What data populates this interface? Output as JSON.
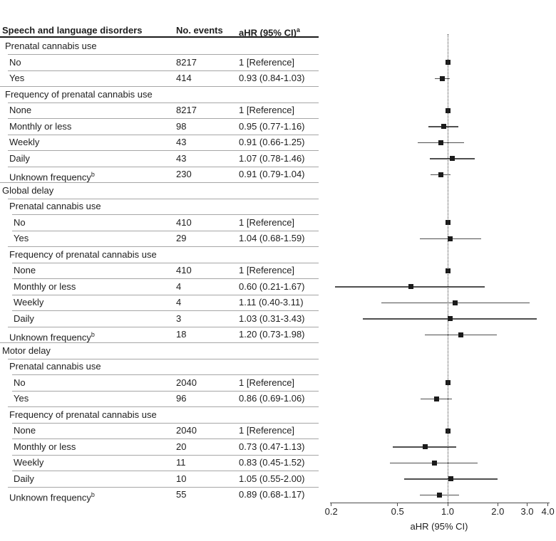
{
  "chart_data": {
    "type": "forest",
    "columns": {
      "outcome": "Speech and language disorders",
      "events": "No. events",
      "ahr": "aHR (95% CI)",
      "ahr_sup": "a"
    },
    "xlabel": "aHR (95% CI)",
    "x_scale": "log",
    "x_range": [
      0.2,
      4.0
    ],
    "x_ticks": [
      0.2,
      0.5,
      1.0,
      2.0,
      3.0,
      4.0
    ],
    "x_tick_labels": [
      "0.2",
      "0.5",
      "1.0",
      "2.0",
      "3.0",
      "4.0"
    ],
    "ref_line": 1.0,
    "rows": [
      {
        "label": "Prenatal cannabis use",
        "indent": 1
      },
      {
        "label": "No",
        "indent": 2,
        "events": "8217",
        "ahr": "1 [Reference]",
        "est": 1.0
      },
      {
        "label": "Yes",
        "indent": 2,
        "events": "414",
        "ahr": "0.93 (0.84-1.03)",
        "est": 0.93,
        "lo": 0.84,
        "hi": 1.03
      },
      {
        "label": "Frequency of prenatal cannabis use",
        "indent": 1
      },
      {
        "label": "None",
        "indent": 2,
        "events": "8217",
        "ahr": "1 [Reference]",
        "est": 1.0
      },
      {
        "label": "Monthly or less",
        "indent": 2,
        "events": "98",
        "ahr": "0.95 (0.77-1.16)",
        "est": 0.95,
        "lo": 0.77,
        "hi": 1.16
      },
      {
        "label": "Weekly",
        "indent": 2,
        "events": "43",
        "ahr": "0.91 (0.66-1.25)",
        "est": 0.91,
        "lo": 0.66,
        "hi": 1.25
      },
      {
        "label": "Daily",
        "indent": 2,
        "events": "43",
        "ahr": "1.07 (0.78-1.46)",
        "est": 1.07,
        "lo": 0.78,
        "hi": 1.46
      },
      {
        "label": "Unknown frequency",
        "sup": "b",
        "indent": 2,
        "events": "230",
        "ahr": "0.91 (0.79-1.04)",
        "est": 0.91,
        "lo": 0.79,
        "hi": 1.04
      },
      {
        "label": "Global delay",
        "indent": 0
      },
      {
        "label": "Prenatal cannabis use",
        "indent": 2
      },
      {
        "label": "No",
        "indent": 3,
        "events": "410",
        "ahr": "1 [Reference]",
        "est": 1.0
      },
      {
        "label": "Yes",
        "indent": 3,
        "events": "29",
        "ahr": "1.04 (0.68-1.59)",
        "est": 1.04,
        "lo": 0.68,
        "hi": 1.59
      },
      {
        "label": "Frequency of prenatal cannabis use",
        "indent": 2
      },
      {
        "label": "None",
        "indent": 3,
        "events": "410",
        "ahr": "1 [Reference]",
        "est": 1.0
      },
      {
        "label": "Monthly or less",
        "indent": 3,
        "events": "4",
        "ahr": "0.60 (0.21-1.67)",
        "est": 0.6,
        "lo": 0.21,
        "hi": 1.67
      },
      {
        "label": "Weekly",
        "indent": 3,
        "events": "4",
        "ahr": "1.11 (0.40-3.11)",
        "est": 1.11,
        "lo": 0.4,
        "hi": 3.11
      },
      {
        "label": "Daily",
        "indent": 3,
        "events": "3",
        "ahr": "1.03 (0.31-3.43)",
        "est": 1.03,
        "lo": 0.31,
        "hi": 3.43
      },
      {
        "label": "Unknown frequency",
        "sup": "b",
        "indent": 2,
        "events": "18",
        "ahr": "1.20 (0.73-1.98)",
        "est": 1.2,
        "lo": 0.73,
        "hi": 1.98
      },
      {
        "label": "Motor delay",
        "indent": 0
      },
      {
        "label": "Prenatal cannabis use",
        "indent": 2
      },
      {
        "label": "No",
        "indent": 3,
        "events": "2040",
        "ahr": "1 [Reference]",
        "est": 1.0
      },
      {
        "label": "Yes",
        "indent": 3,
        "events": "96",
        "ahr": "0.86 (0.69-1.06)",
        "est": 0.86,
        "lo": 0.69,
        "hi": 1.06
      },
      {
        "label": "Frequency of prenatal cannabis use",
        "indent": 2
      },
      {
        "label": "None",
        "indent": 3,
        "events": "2040",
        "ahr": "1 [Reference]",
        "est": 1.0
      },
      {
        "label": "Monthly or less",
        "indent": 3,
        "events": "20",
        "ahr": "0.73 (0.47-1.13)",
        "est": 0.73,
        "lo": 0.47,
        "hi": 1.13
      },
      {
        "label": "Weekly",
        "indent": 3,
        "events": "11",
        "ahr": "0.83 (0.45-1.52)",
        "est": 0.83,
        "lo": 0.45,
        "hi": 1.52
      },
      {
        "label": "Daily",
        "indent": 3,
        "events": "10",
        "ahr": "1.05 (0.55-2.00)",
        "est": 1.05,
        "lo": 0.55,
        "hi": 2.0
      },
      {
        "label": "Unknown frequency",
        "sup": "b",
        "indent": 2,
        "events": "55",
        "ahr": "0.89 (0.68-1.17)",
        "est": 0.89,
        "lo": 0.68,
        "hi": 1.17
      }
    ]
  },
  "colors": {
    "text": "#1e1e1e",
    "marker": "#1b1b1b",
    "ci_line": "#4f4f4f",
    "axis": "#4d4d4d",
    "ref_line": "#3a3a3a",
    "thin_rule": "#a6a6a6",
    "header_rule": "#1a1a1a"
  }
}
